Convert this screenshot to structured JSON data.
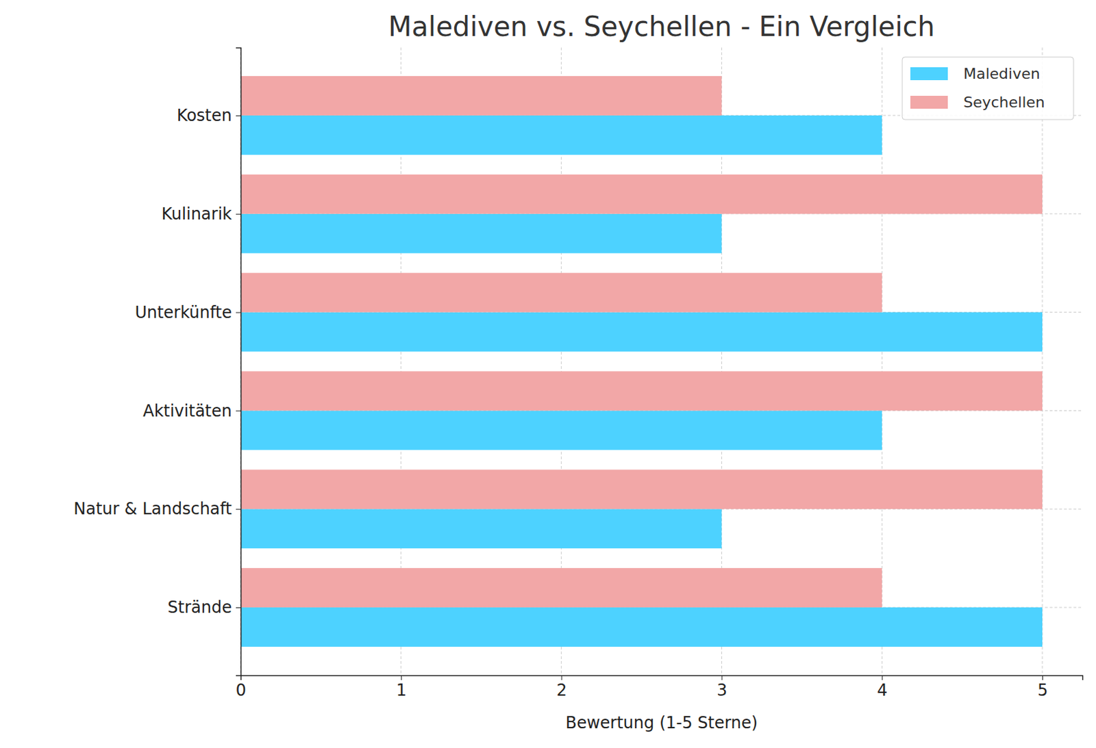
{
  "chart_data": {
    "type": "bar",
    "orientation": "horizontal",
    "title": "Malediven vs. Seychellen - Ein Vergleich",
    "x_label": "Bewertung (1-5 Sterne)",
    "categories": [
      "Strände",
      "Natur & Landschaft",
      "Aktivitäten",
      "Unterkünfte",
      "Kulinarik",
      "Kosten"
    ],
    "series": [
      {
        "name": "Malediven",
        "color": "#4dd2ff",
        "values": [
          5,
          3,
          4,
          5,
          3,
          4
        ]
      },
      {
        "name": "Seychellen",
        "color": "#f2a7a7",
        "values": [
          4,
          5,
          5,
          4,
          5,
          3
        ]
      }
    ],
    "xlim": [
      0,
      5.25
    ],
    "xticks": [
      0,
      1,
      2,
      3,
      4,
      5
    ],
    "grid": true,
    "legend": "upper right"
  }
}
